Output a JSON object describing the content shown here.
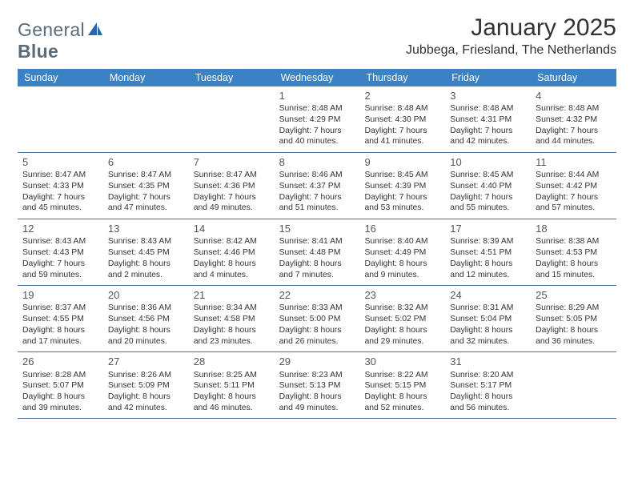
{
  "logo": {
    "word1": "General",
    "word2": "Blue"
  },
  "title": "January 2025",
  "location": "Jubbega, Friesland, The Netherlands",
  "theme": {
    "header_bg": "#3b82c4",
    "header_text": "#ffffff",
    "rule_color": "#4a6f8f",
    "body_text": "#333333",
    "daynum_color": "#555555",
    "logo_text_color": "#5a6b7a",
    "logo_icon_color": "#2a67a8",
    "background": "#ffffff",
    "title_fontsize": 30,
    "location_fontsize": 16,
    "dow_fontsize": 12.5,
    "body_fontsize": 10.4,
    "daynum_fontsize": 13
  },
  "days_of_week": [
    "Sunday",
    "Monday",
    "Tuesday",
    "Wednesday",
    "Thursday",
    "Friday",
    "Saturday"
  ],
  "weeks": [
    [
      null,
      null,
      null,
      {
        "n": "1",
        "sunrise": "8:48 AM",
        "sunset": "4:29 PM",
        "daylight": "7 hours and 40 minutes."
      },
      {
        "n": "2",
        "sunrise": "8:48 AM",
        "sunset": "4:30 PM",
        "daylight": "7 hours and 41 minutes."
      },
      {
        "n": "3",
        "sunrise": "8:48 AM",
        "sunset": "4:31 PM",
        "daylight": "7 hours and 42 minutes."
      },
      {
        "n": "4",
        "sunrise": "8:48 AM",
        "sunset": "4:32 PM",
        "daylight": "7 hours and 44 minutes."
      }
    ],
    [
      {
        "n": "5",
        "sunrise": "8:47 AM",
        "sunset": "4:33 PM",
        "daylight": "7 hours and 45 minutes."
      },
      {
        "n": "6",
        "sunrise": "8:47 AM",
        "sunset": "4:35 PM",
        "daylight": "7 hours and 47 minutes."
      },
      {
        "n": "7",
        "sunrise": "8:47 AM",
        "sunset": "4:36 PM",
        "daylight": "7 hours and 49 minutes."
      },
      {
        "n": "8",
        "sunrise": "8:46 AM",
        "sunset": "4:37 PM",
        "daylight": "7 hours and 51 minutes."
      },
      {
        "n": "9",
        "sunrise": "8:45 AM",
        "sunset": "4:39 PM",
        "daylight": "7 hours and 53 minutes."
      },
      {
        "n": "10",
        "sunrise": "8:45 AM",
        "sunset": "4:40 PM",
        "daylight": "7 hours and 55 minutes."
      },
      {
        "n": "11",
        "sunrise": "8:44 AM",
        "sunset": "4:42 PM",
        "daylight": "7 hours and 57 minutes."
      }
    ],
    [
      {
        "n": "12",
        "sunrise": "8:43 AM",
        "sunset": "4:43 PM",
        "daylight": "7 hours and 59 minutes."
      },
      {
        "n": "13",
        "sunrise": "8:43 AM",
        "sunset": "4:45 PM",
        "daylight": "8 hours and 2 minutes."
      },
      {
        "n": "14",
        "sunrise": "8:42 AM",
        "sunset": "4:46 PM",
        "daylight": "8 hours and 4 minutes."
      },
      {
        "n": "15",
        "sunrise": "8:41 AM",
        "sunset": "4:48 PM",
        "daylight": "8 hours and 7 minutes."
      },
      {
        "n": "16",
        "sunrise": "8:40 AM",
        "sunset": "4:49 PM",
        "daylight": "8 hours and 9 minutes."
      },
      {
        "n": "17",
        "sunrise": "8:39 AM",
        "sunset": "4:51 PM",
        "daylight": "8 hours and 12 minutes."
      },
      {
        "n": "18",
        "sunrise": "8:38 AM",
        "sunset": "4:53 PM",
        "daylight": "8 hours and 15 minutes."
      }
    ],
    [
      {
        "n": "19",
        "sunrise": "8:37 AM",
        "sunset": "4:55 PM",
        "daylight": "8 hours and 17 minutes."
      },
      {
        "n": "20",
        "sunrise": "8:36 AM",
        "sunset": "4:56 PM",
        "daylight": "8 hours and 20 minutes."
      },
      {
        "n": "21",
        "sunrise": "8:34 AM",
        "sunset": "4:58 PM",
        "daylight": "8 hours and 23 minutes."
      },
      {
        "n": "22",
        "sunrise": "8:33 AM",
        "sunset": "5:00 PM",
        "daylight": "8 hours and 26 minutes."
      },
      {
        "n": "23",
        "sunrise": "8:32 AM",
        "sunset": "5:02 PM",
        "daylight": "8 hours and 29 minutes."
      },
      {
        "n": "24",
        "sunrise": "8:31 AM",
        "sunset": "5:04 PM",
        "daylight": "8 hours and 32 minutes."
      },
      {
        "n": "25",
        "sunrise": "8:29 AM",
        "sunset": "5:05 PM",
        "daylight": "8 hours and 36 minutes."
      }
    ],
    [
      {
        "n": "26",
        "sunrise": "8:28 AM",
        "sunset": "5:07 PM",
        "daylight": "8 hours and 39 minutes."
      },
      {
        "n": "27",
        "sunrise": "8:26 AM",
        "sunset": "5:09 PM",
        "daylight": "8 hours and 42 minutes."
      },
      {
        "n": "28",
        "sunrise": "8:25 AM",
        "sunset": "5:11 PM",
        "daylight": "8 hours and 46 minutes."
      },
      {
        "n": "29",
        "sunrise": "8:23 AM",
        "sunset": "5:13 PM",
        "daylight": "8 hours and 49 minutes."
      },
      {
        "n": "30",
        "sunrise": "8:22 AM",
        "sunset": "5:15 PM",
        "daylight": "8 hours and 52 minutes."
      },
      {
        "n": "31",
        "sunrise": "8:20 AM",
        "sunset": "5:17 PM",
        "daylight": "8 hours and 56 minutes."
      },
      null
    ]
  ],
  "labels": {
    "sunrise": "Sunrise:",
    "sunset": "Sunset:",
    "daylight": "Daylight:"
  }
}
